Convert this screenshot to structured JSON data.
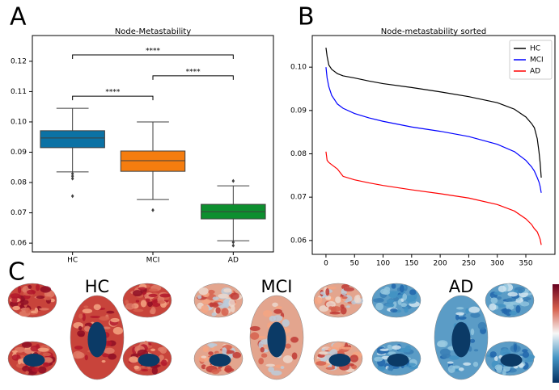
{
  "chart_data": [
    {
      "type": "box",
      "panel_label": "A",
      "title": "Node-Metastability",
      "categories": [
        "HC",
        "MCI",
        "AD"
      ],
      "colors": [
        "#0b72a5",
        "#f57d0f",
        "#0d8f2f"
      ],
      "boxes": [
        {
          "whislo": 0.0835,
          "q1": 0.0915,
          "med": 0.0947,
          "q3": 0.0971,
          "whishi": 0.1045,
          "fliers": [
            0.0829,
            0.0821,
            0.0813,
            0.0755
          ]
        },
        {
          "whislo": 0.0744,
          "q1": 0.0837,
          "med": 0.0872,
          "q3": 0.0904,
          "whishi": 0.1,
          "fliers": [
            0.0709
          ]
        },
        {
          "whislo": 0.0608,
          "q1": 0.068,
          "med": 0.0704,
          "q3": 0.0728,
          "whishi": 0.0789,
          "fliers": [
            0.0805,
            0.0603,
            0.0592
          ]
        }
      ],
      "annotations": [
        {
          "groups": [
            "HC",
            "AD"
          ],
          "y": 0.1221,
          "text": "****"
        },
        {
          "groups": [
            "MCI",
            "AD"
          ],
          "y": 0.1152,
          "text": "****"
        },
        {
          "groups": [
            "HC",
            "MCI"
          ],
          "y": 0.1085,
          "text": "****"
        }
      ],
      "ylim": [
        0.0571,
        0.1285
      ],
      "yticks": [
        0.06,
        0.07,
        0.08,
        0.09,
        {
          "value": 0.1,
          "label": "0.10"
        },
        0.11,
        0.12
      ]
    },
    {
      "type": "line",
      "panel_label": "B",
      "title": "Node-metastability sorted",
      "x": [
        0,
        2,
        5,
        10,
        20,
        30,
        50,
        75,
        100,
        150,
        200,
        250,
        300,
        330,
        350,
        360,
        365,
        370,
        373,
        375,
        377
      ],
      "series": [
        {
          "name": "HC",
          "color": "#000000",
          "values": [
            0.1045,
            0.1025,
            0.1005,
            0.0995,
            0.0985,
            0.098,
            0.0975,
            0.0968,
            0.0962,
            0.0953,
            0.0943,
            0.0932,
            0.0918,
            0.0903,
            0.0885,
            0.087,
            0.086,
            0.0835,
            0.0805,
            0.078,
            0.0745
          ]
        },
        {
          "name": "MCI",
          "color": "#0000ff",
          "values": [
            0.1,
            0.0975,
            0.0955,
            0.0935,
            0.0915,
            0.0905,
            0.0893,
            0.0883,
            0.0875,
            0.0862,
            0.0852,
            0.084,
            0.0822,
            0.0805,
            0.0785,
            0.077,
            0.076,
            0.0745,
            0.0735,
            0.0725,
            0.071
          ]
        },
        {
          "name": "AD",
          "color": "#ff0000",
          "values": [
            0.0805,
            0.0785,
            0.078,
            0.0775,
            0.0765,
            0.0748,
            0.074,
            0.0733,
            0.0727,
            0.0717,
            0.0708,
            0.0698,
            0.0683,
            0.0668,
            0.065,
            0.0637,
            0.0627,
            0.062,
            0.061,
            0.0603,
            0.059
          ]
        }
      ],
      "xlim": [
        -24,
        401
      ],
      "xticks": [
        0,
        50,
        100,
        150,
        200,
        250,
        300,
        350
      ],
      "ylim": [
        0.0568,
        0.1073
      ],
      "yticks": [
        0.06,
        0.07,
        0.08,
        0.09,
        {
          "value": 0.1,
          "label": "0.10"
        }
      ],
      "legend": "upper right"
    }
  ],
  "brain_maps": {
    "panel_label": "C",
    "groups": [
      "HC",
      "MCI",
      "AD"
    ]
  }
}
